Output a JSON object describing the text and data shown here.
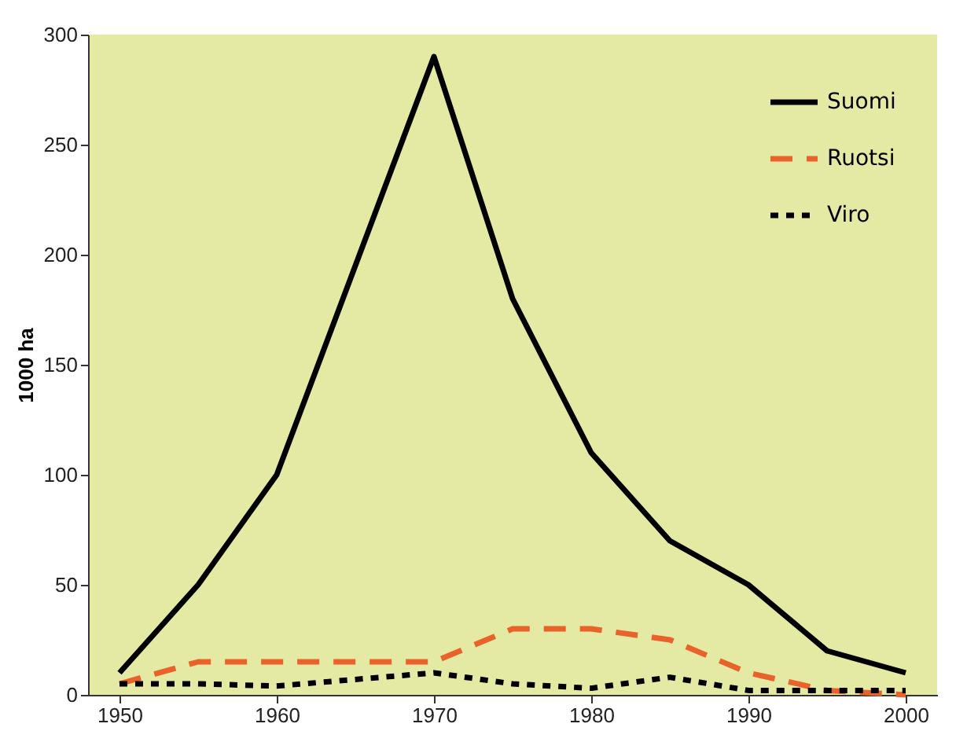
{
  "chart_data": {
    "type": "line",
    "ylabel": "1000 ha",
    "x": [
      1950,
      1955,
      1960,
      1965,
      1970,
      1975,
      1980,
      1985,
      1990,
      1995,
      2000
    ],
    "series": [
      {
        "name": "Suomi",
        "color": "#000000",
        "line_style": "solid",
        "values": [
          10,
          50,
          100,
          195,
          290,
          180,
          110,
          70,
          50,
          20,
          10
        ]
      },
      {
        "name": "Ruotsi",
        "color": "#e8622a",
        "line_style": "dashed",
        "values": [
          5,
          15,
          15,
          15,
          15,
          30,
          30,
          25,
          10,
          2,
          0
        ]
      },
      {
        "name": "Viro",
        "color": "#000000",
        "line_style": "dotted",
        "values": [
          5,
          5,
          4,
          7,
          10,
          5,
          3,
          8,
          2,
          2,
          2
        ]
      }
    ],
    "xlim": [
      1948,
      2002
    ],
    "xticks": [
      1950,
      1960,
      1970,
      1980,
      1990,
      2000
    ],
    "ylim": [
      0,
      300
    ],
    "yticks": [
      0,
      50,
      100,
      150,
      200,
      250,
      300
    ],
    "grid": false,
    "legend": "top right"
  }
}
